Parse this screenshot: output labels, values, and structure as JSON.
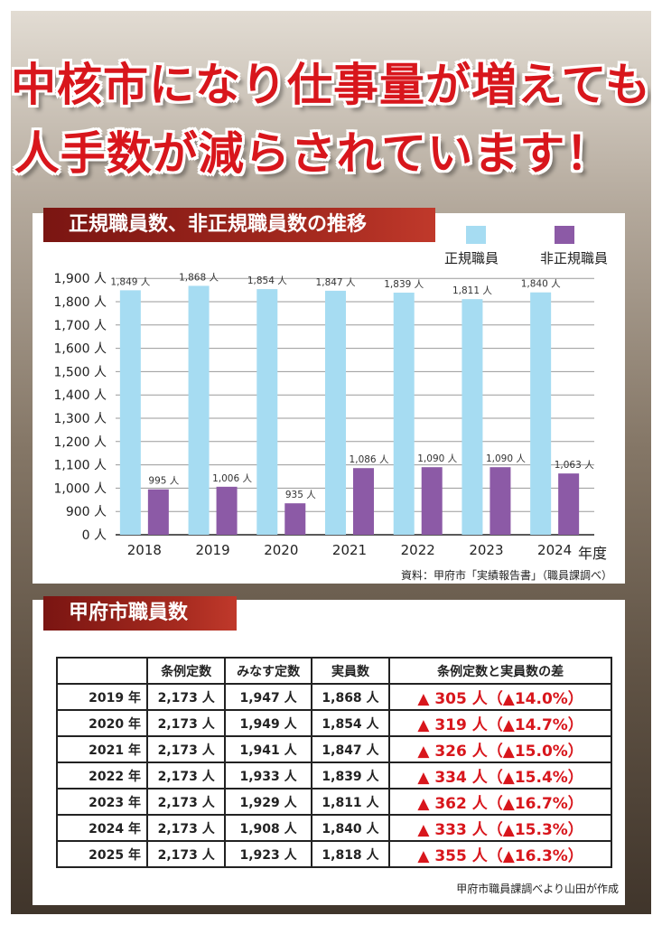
{
  "headline": {
    "line1": "中核市になり仕事量が増えても",
    "line2": "人手数が減らされています！"
  },
  "chart_section": {
    "title": "正規職員数、非正規職員数の推移"
  },
  "chart_data": {
    "type": "bar",
    "categories": [
      "2018",
      "2019",
      "2020",
      "2021",
      "2022",
      "2023",
      "2024"
    ],
    "series": [
      {
        "name": "正規職員",
        "color": "#a6dcf2",
        "values": [
          1849,
          1868,
          1854,
          1847,
          1839,
          1811,
          1840
        ],
        "labels": [
          "1,849 人",
          "1,868 人",
          "1,854 人",
          "1,847 人",
          "1,839 人",
          "1,811 人",
          "1,840 人"
        ]
      },
      {
        "name": "非正規職員",
        "color": "#8c5aa6",
        "values": [
          995,
          1006,
          935,
          1086,
          1090,
          1090,
          1063
        ],
        "labels": [
          "995 人",
          "1,006 人",
          "935 人",
          "1,086 人",
          "1,090 人",
          "1,090 人",
          "1,063 人"
        ]
      }
    ],
    "xlabel": "年度",
    "y_axis_break": true,
    "y_ticks": [
      {
        "value": 0,
        "label": "0 人"
      },
      {
        "value": 900,
        "label": "900 人"
      },
      {
        "value": 1000,
        "label": "1,000 人"
      },
      {
        "value": 1100,
        "label": "1,100 人"
      },
      {
        "value": 1200,
        "label": "1,200 人"
      },
      {
        "value": 1300,
        "label": "1,300 人"
      },
      {
        "value": 1400,
        "label": "1,400 人"
      },
      {
        "value": 1500,
        "label": "1,500 人"
      },
      {
        "value": 1600,
        "label": "1,600 人"
      },
      {
        "value": 1700,
        "label": "1,700 人"
      },
      {
        "value": 1800,
        "label": "1,800 人"
      },
      {
        "value": 1900,
        "label": "1,900 人"
      }
    ],
    "grid": true,
    "legend": "top-right",
    "source": "資料：甲府市「実績報告書」（職員課調べ）"
  },
  "table_section": {
    "title": "甲府市職員数",
    "headers": [
      "",
      "条例定数",
      "みなす定数",
      "実員数",
      "条例定数と実員数の差"
    ],
    "rows": [
      [
        "2019 年",
        "2,173 人",
        "1,947 人",
        "1,868 人",
        "▲ 305 人（▲14.0%）"
      ],
      [
        "2020 年",
        "2,173 人",
        "1,949 人",
        "1,854 人",
        "▲ 319 人（▲14.7%）"
      ],
      [
        "2021 年",
        "2,173 人",
        "1,941 人",
        "1,847 人",
        "▲ 326 人（▲15.0%）"
      ],
      [
        "2022 年",
        "2,173 人",
        "1,933 人",
        "1,839 人",
        "▲ 334 人（▲15.4%）"
      ],
      [
        "2023 年",
        "2,173 人",
        "1,929 人",
        "1,811 人",
        "▲ 362 人（▲16.7%）"
      ],
      [
        "2024 年",
        "2,173 人",
        "1,908 人",
        "1,840 人",
        "▲ 333 人（▲15.3%）"
      ],
      [
        "2025 年",
        "2,173 人",
        "1,923 人",
        "1,818 人",
        "▲ 355 人（▲16.3%）"
      ]
    ],
    "footnote": "甲府市職員課調べより山田が作成"
  },
  "colors": {
    "headline": "#d8161c",
    "tag": "#a62a1f",
    "regular": "#a6dcf2",
    "nonregular": "#8c5aa6"
  }
}
